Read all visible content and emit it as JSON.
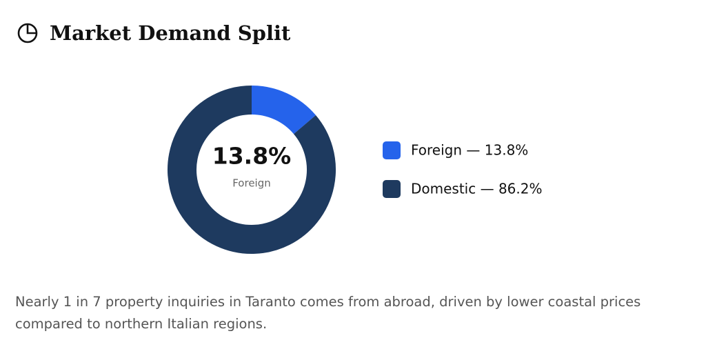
{
  "chart_data": {
    "type": "donut",
    "title": "Market Demand Split",
    "categories": [
      "Foreign",
      "Domestic"
    ],
    "values": [
      13.8,
      86.2
    ],
    "value_labels": [
      "13.8%",
      "86.2%"
    ],
    "legend_labels": [
      "Foreign — 13.8%",
      "Domestic — 86.2%"
    ],
    "colors": [
      "#2563eb",
      "#1e3a5f"
    ],
    "caption": "Nearly 1 in 7 property inquiries in Taranto comes from abroad, driven by lower coastal prices compared to northern Italian regions."
  }
}
